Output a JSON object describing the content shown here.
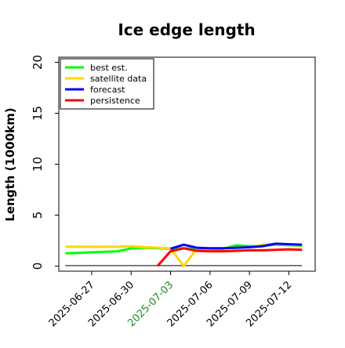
{
  "chart_data": {
    "type": "line",
    "title": "Ice edge length",
    "xlabel": "",
    "ylabel": "Length (1000km)",
    "ylim": [
      -0.5,
      20.5
    ],
    "xlim": [
      "2025-06-24T12:00",
      "2025-07-14T00:00"
    ],
    "y_ticks": [
      0,
      5,
      10,
      15,
      20
    ],
    "x_ticks": [
      {
        "date": "2025-06-27",
        "label": "2025-06-27",
        "color": "#000000"
      },
      {
        "date": "2025-06-30",
        "label": "2025-06-30",
        "color": "#000000"
      },
      {
        "date": "2025-07-03",
        "label": "2025-07-03",
        "color": "#228B22"
      },
      {
        "date": "2025-07-06",
        "label": "2025-07-06",
        "color": "#000000"
      },
      {
        "date": "2025-07-09",
        "label": "2025-07-09",
        "color": "#000000"
      },
      {
        "date": "2025-07-12",
        "label": "2025-07-12",
        "color": "#000000"
      }
    ],
    "grid": false,
    "legend_position": "top-left",
    "reference_line": {
      "color": "#000000",
      "points": [
        [
          "2025-06-25",
          0.05
        ],
        [
          "2025-07-13",
          0.05
        ]
      ]
    },
    "series": [
      {
        "name": "best est.",
        "color": "#00ff00",
        "points": [
          [
            "2025-06-25",
            1.25
          ],
          [
            "2025-06-26",
            1.3
          ],
          [
            "2025-06-27",
            1.35
          ],
          [
            "2025-06-28",
            1.4
          ],
          [
            "2025-06-29",
            1.45
          ],
          [
            "2025-06-30",
            1.75
          ],
          [
            "2025-07-01",
            1.8
          ],
          [
            "2025-07-02",
            1.75
          ],
          [
            "2025-07-03",
            1.7
          ],
          [
            "2025-07-04",
            1.75
          ],
          [
            "2025-07-05",
            1.7
          ],
          [
            "2025-07-06",
            1.65
          ],
          [
            "2025-07-07",
            1.7
          ],
          [
            "2025-07-08",
            2.05
          ],
          [
            "2025-07-09",
            1.95
          ],
          [
            "2025-07-10",
            2.0
          ],
          [
            "2025-07-11",
            2.1
          ],
          [
            "2025-07-12",
            2.05
          ],
          [
            "2025-07-13",
            2.0
          ]
        ]
      },
      {
        "name": "satellite data",
        "color": "#ffd700",
        "points": [
          [
            "2025-06-25",
            1.9
          ],
          [
            "2025-06-26",
            1.9
          ],
          [
            "2025-06-27",
            1.9
          ],
          [
            "2025-06-28",
            1.9
          ],
          [
            "2025-06-29",
            1.9
          ],
          [
            "2025-06-30",
            1.95
          ],
          [
            "2025-07-01",
            1.85
          ],
          [
            "2025-07-02",
            1.8
          ],
          [
            "2025-07-03",
            1.75
          ],
          [
            "2025-07-04",
            0.0
          ],
          [
            "2025-07-05",
            1.7
          ],
          [
            "2025-07-06",
            1.7
          ],
          [
            "2025-07-07",
            1.75
          ],
          [
            "2025-07-08",
            1.8
          ],
          [
            "2025-07-09",
            1.85
          ],
          [
            "2025-07-10",
            2.1
          ],
          [
            "2025-07-11",
            2.15
          ],
          [
            "2025-07-12",
            2.1
          ],
          [
            "2025-07-13",
            2.05
          ]
        ]
      },
      {
        "name": "forecast",
        "color": "#0000ff",
        "points": [
          [
            "2025-07-03",
            1.7
          ],
          [
            "2025-07-04",
            2.1
          ],
          [
            "2025-07-05",
            1.8
          ],
          [
            "2025-07-06",
            1.75
          ],
          [
            "2025-07-07",
            1.75
          ],
          [
            "2025-07-08",
            1.8
          ],
          [
            "2025-07-09",
            1.85
          ],
          [
            "2025-07-10",
            1.95
          ],
          [
            "2025-07-11",
            2.2
          ],
          [
            "2025-07-12",
            2.15
          ],
          [
            "2025-07-13",
            2.1
          ]
        ]
      },
      {
        "name": "persistence",
        "color": "#ff0000",
        "points": [
          [
            "2025-07-02",
            0.0
          ],
          [
            "2025-07-03",
            1.45
          ],
          [
            "2025-07-04",
            1.75
          ],
          [
            "2025-07-05",
            1.5
          ],
          [
            "2025-07-06",
            1.45
          ],
          [
            "2025-07-07",
            1.45
          ],
          [
            "2025-07-08",
            1.5
          ],
          [
            "2025-07-09",
            1.55
          ],
          [
            "2025-07-10",
            1.55
          ],
          [
            "2025-07-11",
            1.6
          ],
          [
            "2025-07-12",
            1.65
          ],
          [
            "2025-07-13",
            1.6
          ]
        ]
      }
    ]
  }
}
